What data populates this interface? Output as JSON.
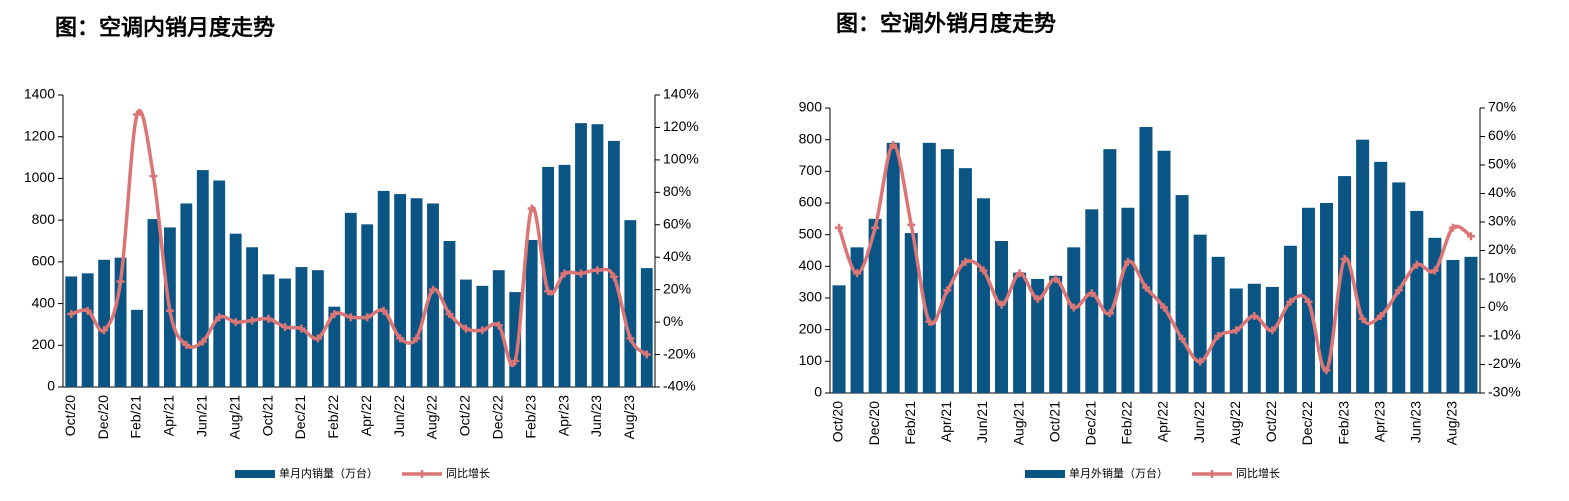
{
  "chart_data": [
    {
      "type": "bar-line",
      "title": "图：空调内销月度走势",
      "categories": [
        "Oct/20",
        null,
        "Dec/20",
        null,
        "Feb/21",
        null,
        "Apr/21",
        null,
        "Jun/21",
        null,
        "Aug/21",
        null,
        "Oct/21",
        null,
        "Dec/21",
        null,
        "Feb/22",
        null,
        "Apr/22",
        null,
        "Jun/22",
        null,
        "Aug/22",
        null,
        "Oct/22",
        null,
        "Dec/22",
        null,
        "Feb/23",
        null,
        "Apr/23",
        null,
        "Jun/23",
        null,
        "Aug/23",
        null
      ],
      "series": [
        {
          "name": "单月内销量（万台）",
          "kind": "bar",
          "color": "#0b5584",
          "values": [
            530,
            545,
            610,
            620,
            370,
            805,
            765,
            880,
            1040,
            990,
            735,
            670,
            540,
            520,
            575,
            560,
            385,
            835,
            780,
            940,
            925,
            905,
            880,
            700,
            515,
            485,
            560,
            455,
            705,
            1055,
            1065,
            1265,
            1260,
            1180,
            800,
            570
          ]
        },
        {
          "name": "同比增长",
          "kind": "line",
          "axis": "y2",
          "color": "#dc7576",
          "values": [
            5,
            7,
            -5,
            25,
            128,
            90,
            7,
            -14,
            -12,
            3,
            0,
            1,
            2,
            -3,
            -4,
            -10,
            5,
            3,
            3,
            7,
            -10,
            -10,
            20,
            5,
            -4,
            -5,
            -2,
            -24,
            70,
            19,
            30,
            30,
            32,
            28,
            -10,
            -20
          ]
        }
      ],
      "ylim": [
        0,
        1400
      ],
      "yticks": [
        0,
        200,
        400,
        600,
        800,
        1000,
        1200,
        1400
      ],
      "y2lim": [
        -40,
        140
      ],
      "y2ticks": [
        {
          "value": -40,
          "label": "-40%"
        },
        {
          "value": -20,
          "label": "-20%"
        },
        {
          "value": 0,
          "label": "0%"
        },
        {
          "value": 20,
          "label": "20%"
        },
        {
          "value": 40,
          "label": "40%"
        },
        {
          "value": 60,
          "label": "60%"
        },
        {
          "value": 80,
          "label": "80%"
        },
        {
          "value": 100,
          "label": "100%"
        },
        {
          "value": 120,
          "label": "120%"
        },
        {
          "value": 140,
          "label": "140%"
        }
      ],
      "legend": "bottom"
    },
    {
      "type": "bar-line",
      "title": "图：空调外销月度走势",
      "categories": [
        "Oct/20",
        null,
        "Dec/20",
        null,
        "Feb/21",
        null,
        "Apr/21",
        null,
        "Jun/21",
        null,
        "Aug/21",
        null,
        "Oct/21",
        null,
        "Dec/21",
        null,
        "Feb/22",
        null,
        "Apr/22",
        null,
        "Jun/22",
        null,
        "Aug/22",
        null,
        "Oct/22",
        null,
        "Dec/22",
        null,
        "Feb/23",
        null,
        "Apr/23",
        null,
        "Jun/23",
        null,
        "Aug/23",
        null
      ],
      "series": [
        {
          "name": "单月外销量（万台）",
          "kind": "bar",
          "color": "#0b5584",
          "values": [
            340,
            460,
            550,
            790,
            505,
            790,
            770,
            710,
            615,
            480,
            380,
            360,
            370,
            460,
            580,
            770,
            585,
            840,
            765,
            625,
            500,
            430,
            330,
            345,
            335,
            465,
            585,
            600,
            685,
            800,
            730,
            665,
            575,
            490,
            420,
            430
          ]
        },
        {
          "name": "同比增长",
          "kind": "line",
          "axis": "y2",
          "color": "#dc7576",
          "values": [
            28,
            12,
            28,
            57,
            29,
            -5,
            6,
            16,
            13,
            1,
            12,
            3,
            10,
            0,
            5,
            -2,
            16,
            7,
            0,
            -11,
            -19,
            -10,
            -8,
            -3,
            -8,
            2,
            2,
            -22,
            17,
            -4,
            -3,
            6,
            15,
            13,
            28,
            25
          ]
        }
      ],
      "ylim": [
        0,
        900
      ],
      "yticks": [
        0,
        100,
        200,
        300,
        400,
        500,
        600,
        700,
        800,
        900
      ],
      "y2lim": [
        -30,
        70
      ],
      "y2ticks": [
        {
          "value": -30,
          "label": "-30%"
        },
        {
          "value": -20,
          "label": "-20%"
        },
        {
          "value": -10,
          "label": "-10%"
        },
        {
          "value": 0,
          "label": "0%"
        },
        {
          "value": 10,
          "label": "10%"
        },
        {
          "value": 20,
          "label": "20%"
        },
        {
          "value": 30,
          "label": "30%"
        },
        {
          "value": 40,
          "label": "40%"
        },
        {
          "value": 50,
          "label": "50%"
        },
        {
          "value": 60,
          "label": "60%"
        },
        {
          "value": 70,
          "label": "70%"
        }
      ],
      "legend": "bottom"
    }
  ]
}
